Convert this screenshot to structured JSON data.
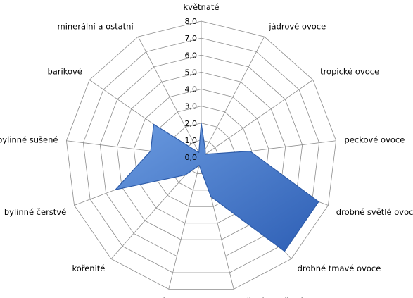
{
  "chart_data": {
    "type": "radar",
    "categories": [
      "květnaté",
      "jádrové ovoce",
      "tropické ovoce",
      "peckové ovoce",
      "drobné světlé ovoce",
      "drobné tmavé ovoce",
      "vařené a sušené ovoce",
      "karamelizované",
      "kořenité",
      "bylinné čerstvé",
      "bylinné sušené",
      "barikové",
      "minerální a ostatní"
    ],
    "series": [
      {
        "values": [
          2.0,
          0.5,
          0.3,
          2.9,
          7.4,
          7.4,
          2.4,
          0.5,
          1.4,
          5.4,
          3.0,
          3.4,
          0.3
        ]
      }
    ],
    "ylim": [
      0,
      8
    ],
    "ticks": [
      "0,0",
      "1,0",
      "2,0",
      "3,0",
      "4,0",
      "5,0",
      "6,0",
      "7,0",
      "8,0"
    ],
    "grid": true,
    "colors": {
      "fill": "#3c72c6",
      "stroke": "#2d5ba8",
      "grid": "#8c8c8c"
    }
  }
}
